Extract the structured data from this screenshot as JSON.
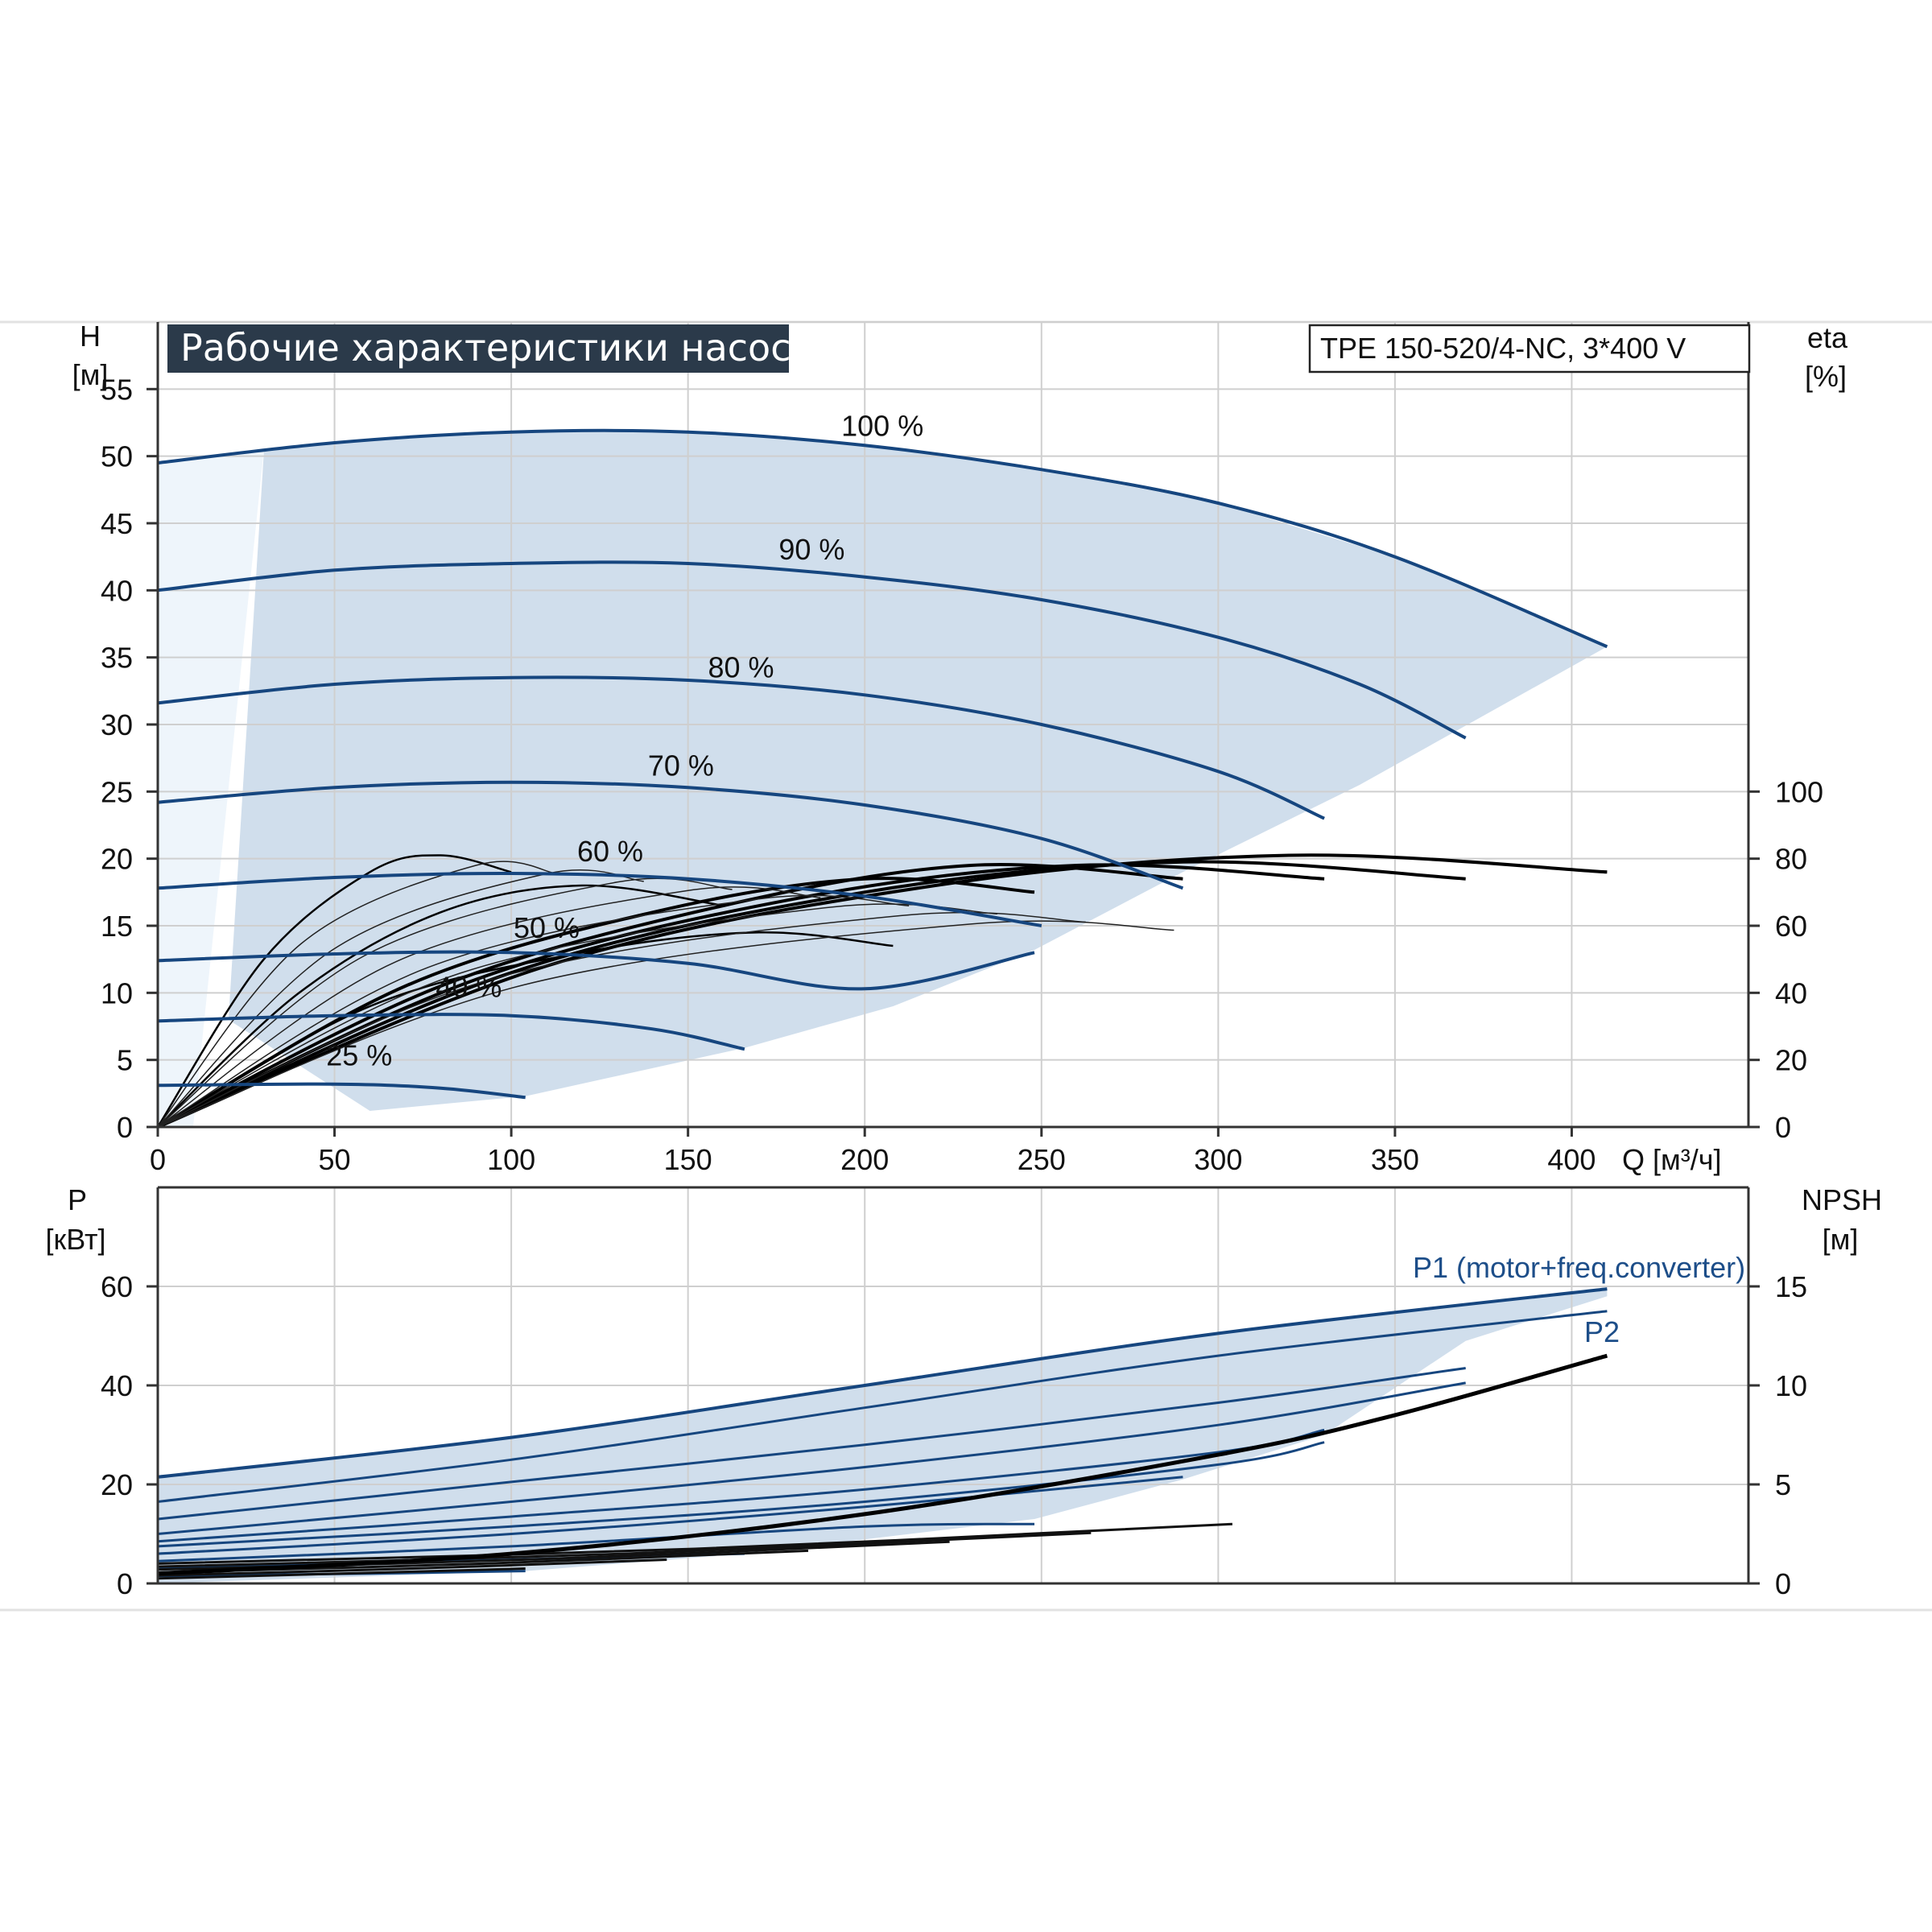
{
  "title": "Рабочие характеристики насоса",
  "model": "TPE 150-520/4-NC, 3*400 V",
  "colors": {
    "curve_blue": "#16467f",
    "fill_blue": "#d0deec",
    "fill_light": "#eef5fb",
    "grid": "#cfcfcf",
    "title_bg": "#2b3a4a",
    "efficiency_black": "#000000"
  },
  "chart_data": [
    {
      "type": "line",
      "name": "head",
      "ylabel": "H",
      "ylabel_unit": "[м]",
      "y2label": "eta",
      "y2label_unit": "[%]",
      "xlabel": "Q [м³/ч]",
      "xlim": [
        0,
        450
      ],
      "ylim": [
        0,
        60
      ],
      "y2lim": [
        0,
        240
      ],
      "x_ticks": [
        0,
        50,
        100,
        150,
        200,
        250,
        300,
        350,
        400
      ],
      "y_ticks": [
        0,
        5,
        10,
        15,
        20,
        25,
        30,
        35,
        40,
        45,
        50,
        55
      ],
      "y2_ticks": [
        0,
        20,
        40,
        60,
        80,
        100
      ],
      "grid": true,
      "series": [
        {
          "name": "100 %",
          "label_at": [
            205,
            51.5
          ],
          "x": [
            0,
            50,
            100,
            150,
            200,
            250,
            300,
            350,
            410
          ],
          "y": [
            49.5,
            51.0,
            51.8,
            51.8,
            50.8,
            49.0,
            46.5,
            42.5,
            35.8
          ]
        },
        {
          "name": "90 %",
          "label_at": [
            185,
            42.3
          ],
          "x": [
            0,
            50,
            100,
            150,
            200,
            250,
            300,
            340,
            370
          ],
          "y": [
            40.0,
            41.5,
            42.0,
            42.0,
            41.0,
            39.3,
            36.5,
            33.0,
            29.0
          ]
        },
        {
          "name": "80 %",
          "label_at": [
            165,
            33.5
          ],
          "x": [
            0,
            50,
            100,
            150,
            200,
            250,
            300,
            330
          ],
          "y": [
            31.6,
            33.0,
            33.5,
            33.3,
            32.2,
            30.0,
            26.5,
            23.0
          ]
        },
        {
          "name": "70 %",
          "label_at": [
            148,
            26.2
          ],
          "x": [
            0,
            50,
            100,
            150,
            200,
            250,
            290
          ],
          "y": [
            24.2,
            25.3,
            25.7,
            25.3,
            24.0,
            21.5,
            17.8
          ]
        },
        {
          "name": "60 %",
          "label_at": [
            128,
            19.8
          ],
          "x": [
            0,
            50,
            100,
            150,
            200,
            250
          ],
          "y": [
            17.8,
            18.6,
            18.9,
            18.5,
            17.2,
            15.0
          ]
        },
        {
          "name": "50 %",
          "label_at": [
            110,
            14.1
          ],
          "x": [
            0,
            50,
            100,
            150,
            200,
            248
          ],
          "y": [
            12.4,
            12.9,
            13.0,
            12.2,
            10.3,
            13.0
          ]
        },
        {
          "name": "40 %",
          "label_at": [
            88,
            9.7
          ],
          "x": [
            0,
            50,
            100,
            140,
            166
          ],
          "y": [
            7.9,
            8.3,
            8.3,
            7.3,
            5.8
          ]
        },
        {
          "name": "25 %",
          "label_at": [
            57,
            4.6
          ],
          "x": [
            0,
            50,
            80,
            104
          ],
          "y": [
            3.1,
            3.2,
            2.9,
            2.2
          ]
        }
      ],
      "efficiency_series": [
        {
          "x": [
            0,
            30,
            60,
            80,
            100
          ],
          "y2": [
            0,
            50,
            76,
            81,
            76
          ]
        },
        {
          "x": [
            0,
            40,
            80,
            120,
            160
          ],
          "y2": [
            0,
            40,
            64,
            72,
            66
          ]
        },
        {
          "x": [
            0,
            60,
            120,
            170,
            208
          ],
          "y2": [
            0,
            36,
            52,
            58,
            54
          ]
        },
        {
          "x": [
            0,
            70,
            140,
            200,
            248
          ],
          "y2": [
            0,
            42,
            64,
            74,
            70
          ]
        },
        {
          "x": [
            0,
            80,
            160,
            230,
            290
          ],
          "y2": [
            0,
            42,
            66,
            78,
            74
          ]
        },
        {
          "x": [
            0,
            90,
            180,
            260,
            330
          ],
          "y2": [
            0,
            44,
            68,
            78,
            74
          ]
        },
        {
          "x": [
            0,
            100,
            200,
            290,
            370
          ],
          "y2": [
            0,
            46,
            70,
            79,
            74
          ]
        },
        {
          "x": [
            0,
            110,
            220,
            320,
            410
          ],
          "y2": [
            0,
            48,
            72,
            81,
            76
          ]
        }
      ]
    },
    {
      "type": "line",
      "name": "power",
      "ylabel": "P",
      "ylabel_unit": "[кВт]",
      "y2label": "NPSH",
      "y2label_unit": "[м]",
      "xlim": [
        0,
        450
      ],
      "ylim": [
        0,
        80
      ],
      "y2lim": [
        0,
        20
      ],
      "y_ticks": [
        0,
        20,
        40,
        60
      ],
      "y2_ticks": [
        0,
        5,
        10,
        15
      ],
      "grid": true,
      "series": [
        {
          "name": "P1 (motor+freq.converter)",
          "x": [
            0,
            100,
            200,
            300,
            410
          ],
          "y": [
            21.5,
            29.5,
            40.0,
            50.5,
            59.5
          ]
        },
        {
          "name": "P2",
          "x": [
            0,
            100,
            200,
            300,
            410
          ],
          "y": [
            16.5,
            25.0,
            35.5,
            46.0,
            55.0
          ]
        }
      ],
      "other_power_curves": [
        {
          "x": [
            0,
            100,
            200,
            300,
            370
          ],
          "y": [
            13.0,
            20.5,
            28.0,
            36.5,
            43.5
          ]
        },
        {
          "x": [
            0,
            100,
            200,
            300,
            370
          ],
          "y": [
            10.0,
            16.5,
            23.5,
            32.0,
            40.5
          ]
        },
        {
          "x": [
            0,
            100,
            200,
            300,
            330
          ],
          "y": [
            8.5,
            13.5,
            19.0,
            26.5,
            31.0
          ]
        },
        {
          "x": [
            0,
            100,
            200,
            300,
            330
          ],
          "y": [
            7.5,
            11.5,
            16.5,
            24.0,
            28.5
          ]
        },
        {
          "x": [
            0,
            100,
            200,
            290
          ],
          "y": [
            6.0,
            10.0,
            15.5,
            21.5
          ]
        },
        {
          "x": [
            0,
            100,
            200,
            248
          ],
          "y": [
            4.5,
            7.5,
            11.5,
            12.0
          ]
        },
        {
          "x": [
            0,
            100,
            166
          ],
          "y": [
            3.0,
            4.8,
            6.0
          ]
        },
        {
          "x": [
            0,
            60,
            104
          ],
          "y": [
            1.5,
            2.0,
            2.5
          ]
        }
      ],
      "npsh_curve": {
        "x": [
          0,
          100,
          200,
          300,
          350,
          410
        ],
        "y2": [
          0.5,
          1.5,
          3.5,
          6.5,
          8.5,
          11.5
        ]
      }
    }
  ]
}
